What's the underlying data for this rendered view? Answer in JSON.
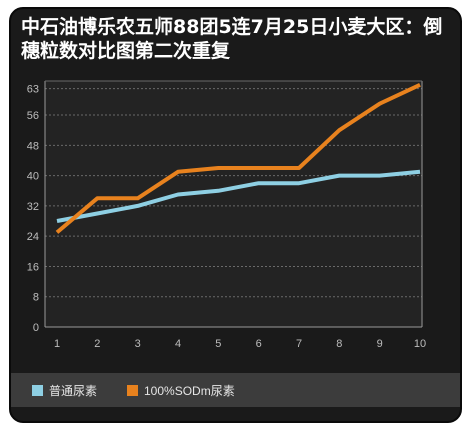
{
  "chart_data": {
    "type": "line",
    "title": "中石油博乐农五师88团5连7月25日小麦大区：倒穗粒数对比图第二次重复",
    "x": [
      "1",
      "2",
      "3",
      "4",
      "5",
      "6",
      "7",
      "8",
      "9",
      "10"
    ],
    "ylim": [
      0,
      65
    ],
    "yticks": [
      0,
      8,
      16,
      24,
      32,
      40,
      48,
      56,
      63
    ],
    "grid": true,
    "legend_position": "bottom-left",
    "series": [
      {
        "name": "普通尿素",
        "color": "#8ecfe3",
        "values": [
          28,
          30,
          32,
          35,
          36,
          38,
          38,
          40,
          40,
          41
        ]
      },
      {
        "name": "100%SODm尿素",
        "color": "#e8821e",
        "values": [
          25,
          34,
          34,
          41,
          42,
          42,
          42,
          52,
          59,
          64
        ]
      }
    ]
  }
}
